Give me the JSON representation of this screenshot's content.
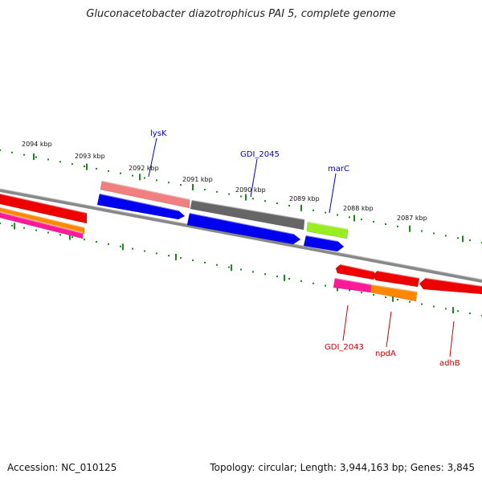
{
  "title": "Gluconacetobacter diazotrophicus PAI 5, complete genome",
  "footer": {
    "accession": "Accession: NC_010125",
    "summary": "Topology: circular; Length: 3,944,163 bp; Genes: 3,845"
  },
  "scale_labels": [
    "2094 kbp",
    "2093 kbp",
    "2092 kbp",
    "2091 kbp",
    "2090 kbp",
    "2089 kbp",
    "2088 kbp",
    "2087 kbp"
  ],
  "genes_top": [
    {
      "label": "lysK",
      "color": "#0000cc"
    },
    {
      "label": "GDI_2045",
      "color": "#0000cc"
    },
    {
      "label": "marC",
      "color": "#0000cc"
    }
  ],
  "genes_bottom": [
    {
      "label": "GDI_2043",
      "color": "#cc0000"
    },
    {
      "label": "npdA",
      "color": "#cc0000"
    },
    {
      "label": "adhB",
      "color": "#cc0000"
    }
  ],
  "colors": {
    "backbone": "#888888",
    "tick": "#1a8a1a",
    "blue": "#0000ee",
    "red": "#ee0000",
    "pink": "#f08080",
    "gray": "#666666",
    "lime": "#99ee22",
    "orange": "#ff8800",
    "magenta": "#ff1a9a"
  }
}
